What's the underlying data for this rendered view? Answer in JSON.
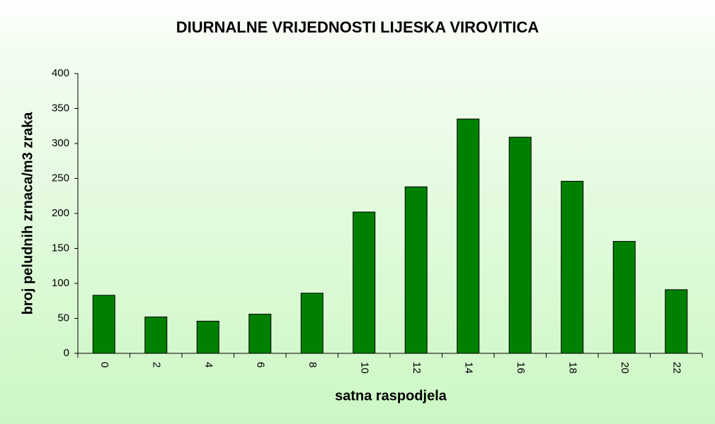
{
  "chart_data": {
    "type": "bar",
    "title": "DIURNALNE VRIJEDNOSTI LIJESKA VIROVITICA",
    "x_label": "satna raspodjela",
    "y_label": "broj peludnih zrnaca/m3 zraka",
    "categories": [
      "0",
      "2",
      "4",
      "6",
      "8",
      "10",
      "12",
      "14",
      "16",
      "18",
      "20",
      "22"
    ],
    "values": [
      83,
      52,
      46,
      56,
      86,
      202,
      238,
      335,
      309,
      246,
      160,
      91
    ],
    "color": "#008000",
    "ylim": [
      0,
      400
    ],
    "yticks": [
      0,
      50,
      100,
      150,
      200,
      250,
      300,
      350,
      400
    ],
    "grid": false
  }
}
